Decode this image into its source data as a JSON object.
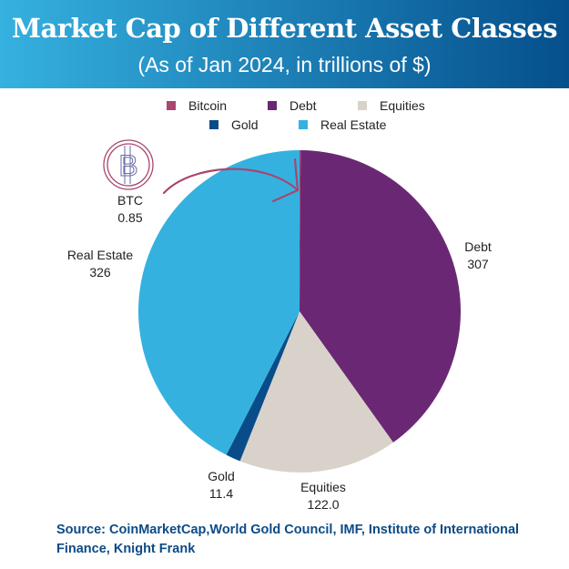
{
  "title": "Market Cap of Different Asset Classes",
  "subtitle": "(As of Jan 2024, in trillions of $)",
  "chart_data": {
    "type": "pie",
    "title": "Market Cap of Different Asset Classes",
    "subtitle": "(As of Jan 2024, in trillions of $)",
    "legend_position": "top",
    "slices": [
      {
        "name": "Bitcoin",
        "label": "BTC",
        "value": 0.85,
        "value_label": "0.85",
        "color": "#a8466f"
      },
      {
        "name": "Debt",
        "label": "Debt",
        "value": 307,
        "value_label": "307",
        "color": "#6a2874"
      },
      {
        "name": "Equities",
        "label": "Equities",
        "value": 122.0,
        "value_label": "122.0",
        "color": "#d9d2ca"
      },
      {
        "name": "Gold",
        "label": "Gold",
        "value": 11.4,
        "value_label": "11.4",
        "color": "#084d8a"
      },
      {
        "name": "Real Estate",
        "label": "Real Estate",
        "value": 326,
        "value_label": "326",
        "color": "#35b1e0"
      }
    ]
  },
  "source": "Source: CoinMarketCap,World Gold Council, IMF, Institute of International Finance, Knight Frank"
}
